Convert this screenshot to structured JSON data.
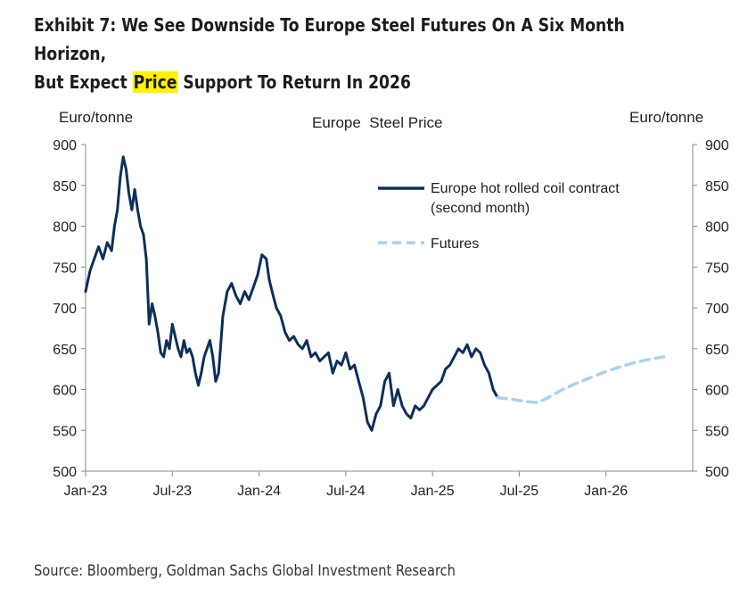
{
  "title": {
    "line1": "Exhibit 7: We See Downside To Europe Steel Futures On A Six Month Horizon,",
    "line2_before": "But Expect ",
    "line2_highlight": "Price",
    "line2_after": " Support To Return In 2026"
  },
  "source": "Source: Bloomberg, Goldman Sachs Global Investment Research",
  "chart_data": {
    "type": "line",
    "title": "Europe  Steel Price",
    "ylabel_left": "Euro/tonne",
    "ylabel_right": "Euro/tonne",
    "ylim": [
      500,
      900
    ],
    "yticks": [
      "500",
      "550",
      "600",
      "650",
      "700",
      "750",
      "800",
      "850",
      "900"
    ],
    "xlim": [
      0,
      42
    ],
    "x_unit": "months since Jan-23",
    "xticks": [
      {
        "label": "Jan-23",
        "x": 0
      },
      {
        "label": "Jul-23",
        "x": 6
      },
      {
        "label": "Jan-24",
        "x": 12
      },
      {
        "label": "Jul-24",
        "x": 18
      },
      {
        "label": "Jan-25",
        "x": 24
      },
      {
        "label": "Jul-25",
        "x": 30
      },
      {
        "label": "Jan-26",
        "x": 36
      }
    ],
    "legend": [
      "Europe hot rolled coil contract",
      "(second month)",
      "Futures"
    ],
    "legend_position": "top-right",
    "series": [
      {
        "name": "Europe hot rolled coil contract (second month)",
        "color": "#0d2f5c",
        "style": "solid",
        "x": [
          0,
          0.3,
          0.6,
          0.9,
          1.2,
          1.5,
          1.8,
          2.0,
          2.2,
          2.4,
          2.6,
          2.8,
          3.0,
          3.2,
          3.4,
          3.6,
          3.8,
          4.0,
          4.2,
          4.4,
          4.6,
          4.8,
          5.0,
          5.2,
          5.4,
          5.6,
          5.8,
          6.0,
          6.2,
          6.4,
          6.6,
          6.8,
          7.0,
          7.2,
          7.4,
          7.6,
          7.8,
          8.0,
          8.2,
          8.4,
          8.6,
          8.8,
          9.0,
          9.2,
          9.5,
          9.8,
          10.1,
          10.4,
          10.7,
          11.0,
          11.3,
          11.6,
          11.9,
          12.2,
          12.5,
          12.7,
          12.9,
          13.2,
          13.5,
          13.8,
          14.1,
          14.4,
          14.7,
          15.0,
          15.3,
          15.6,
          15.9,
          16.2,
          16.5,
          16.8,
          17.1,
          17.4,
          17.7,
          18.0,
          18.3,
          18.6,
          18.9,
          19.2,
          19.5,
          19.8,
          20.1,
          20.4,
          20.7,
          21.0,
          21.3,
          21.6,
          21.9,
          22.2,
          22.5,
          22.8,
          23.1,
          23.4,
          23.7,
          24.0,
          24.3,
          24.6,
          24.9,
          25.2,
          25.5,
          25.8,
          26.1,
          26.4,
          26.7,
          27.0,
          27.3,
          27.6,
          27.9,
          28.2,
          28.5
        ],
        "y": [
          720,
          745,
          760,
          775,
          760,
          780,
          770,
          800,
          820,
          860,
          885,
          870,
          840,
          820,
          845,
          820,
          800,
          790,
          760,
          680,
          705,
          690,
          670,
          645,
          640,
          660,
          650,
          680,
          665,
          650,
          640,
          660,
          645,
          650,
          640,
          620,
          605,
          620,
          640,
          650,
          660,
          640,
          610,
          620,
          690,
          720,
          730,
          715,
          705,
          720,
          710,
          725,
          740,
          765,
          760,
          735,
          720,
          700,
          690,
          670,
          660,
          665,
          655,
          650,
          660,
          640,
          645,
          635,
          640,
          645,
          620,
          635,
          630,
          645,
          625,
          630,
          610,
          590,
          560,
          550,
          570,
          580,
          610,
          620,
          580,
          600,
          580,
          570,
          565,
          580,
          575,
          580,
          590,
          600,
          605,
          610,
          625,
          630,
          640,
          650,
          645,
          655,
          640,
          650,
          645,
          630,
          620,
          600,
          590
        ]
      },
      {
        "name": "Futures",
        "color": "#a9d2f0",
        "style": "dashed",
        "x": [
          28.5,
          29.5,
          30.5,
          31.3,
          32.0,
          33.0,
          34.0,
          35.0,
          36.0,
          37.0,
          38.0,
          39.0,
          40.0
        ],
        "y": [
          590,
          588,
          585,
          584,
          590,
          600,
          608,
          615,
          622,
          628,
          633,
          637,
          640
        ]
      }
    ]
  }
}
